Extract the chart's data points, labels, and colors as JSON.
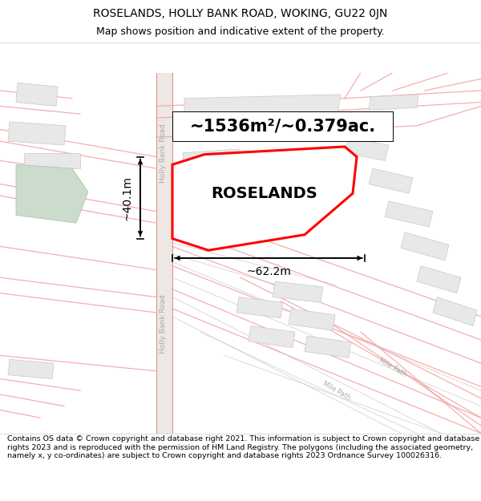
{
  "title": "ROSELANDS, HOLLY BANK ROAD, WOKING, GU22 0JN",
  "subtitle": "Map shows position and indicative extent of the property.",
  "footer": "Contains OS data © Crown copyright and database right 2021. This information is subject to Crown copyright and database rights 2023 and is reproduced with the permission of HM Land Registry. The polygons (including the associated geometry, namely x, y co-ordinates) are subject to Crown copyright and database rights 2023 Ordnance Survey 100026316.",
  "bg_color": "#ffffff",
  "map_bg": "#f8f6f4",
  "road_strip_color": "#ede8e4",
  "road_line_color": "#f4a0a0",
  "building_face": "#e8e8e8",
  "building_edge": "#c8c8c8",
  "green_area_color": "#d4e4d4",
  "highlight_color": "#ff0000",
  "area_label": "~1536m²/~0.379ac.",
  "property_label": "ROSELANDS",
  "width_label": "~62.2m",
  "height_label": "~40.1m",
  "road_label_upper": "Holly Bank Road",
  "road_label_lower": "Holly Bank Road",
  "path_label_upper": "Mile Path",
  "path_label_lower": "Mile Path",
  "title_fontsize": 10,
  "subtitle_fontsize": 9,
  "footer_fontsize": 6.8,
  "area_fontsize": 15,
  "property_fontsize": 14,
  "measurement_fontsize": 10
}
